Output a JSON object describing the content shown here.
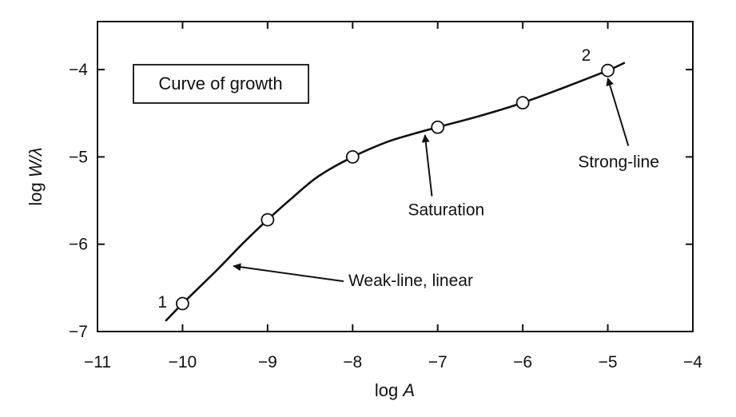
{
  "chart_data": {
    "type": "line",
    "title": "",
    "legend_box": "Curve of growth",
    "xlabel_prefix": "log ",
    "xlabel_var": "A",
    "ylabel_prefix": "log ",
    "ylabel_var": "W/λ",
    "xlim": [
      -11,
      -4
    ],
    "ylim": [
      -7,
      -3.45
    ],
    "xticks": [
      -11,
      -10,
      -9,
      -8,
      -7,
      -6,
      -5,
      -4
    ],
    "yticks": [
      -7,
      -6,
      -5,
      -4
    ],
    "xtick_labels": [
      "−11",
      "−10",
      "−9",
      "−8",
      "−7",
      "−6",
      "−5",
      "−4"
    ],
    "ytick_labels": [
      "−7",
      "−6",
      "−5",
      "−4"
    ],
    "grid": false,
    "curve": {
      "x": [
        -10.2,
        -10.0,
        -9.6,
        -9.3,
        -9.0,
        -8.7,
        -8.4,
        -8.0,
        -7.6,
        -7.3,
        -7.0,
        -6.5,
        -6.0,
        -5.5,
        -5.0,
        -4.8
      ],
      "y": [
        -6.88,
        -6.68,
        -6.3,
        -6.0,
        -5.72,
        -5.46,
        -5.22,
        -5.0,
        -4.83,
        -4.74,
        -4.66,
        -4.53,
        -4.38,
        -4.2,
        -4.01,
        -3.92
      ]
    },
    "points": {
      "x": [
        -10,
        -9,
        -8,
        -7,
        -6,
        -5
      ],
      "y": [
        -6.68,
        -5.72,
        -5.0,
        -4.66,
        -4.38,
        -4.01
      ]
    },
    "point_labels": [
      {
        "text": "1",
        "x": -10,
        "y": -6.68
      },
      {
        "text": "2",
        "x": -5,
        "y": -4.01
      }
    ],
    "annotations": [
      {
        "text": "Weak-line, linear",
        "arrow_to": {
          "x": -9.4,
          "y": -6.25
        },
        "text_at": {
          "x": -8.05,
          "y": -6.48
        }
      },
      {
        "text": "Saturation",
        "arrow_to": {
          "x": -7.15,
          "y": -4.75
        },
        "text_at": {
          "x": -7.35,
          "y": -5.67
        }
      },
      {
        "text": "Strong-line",
        "arrow_to": {
          "x": -5.0,
          "y": -4.1
        },
        "text_at": {
          "x": -5.35,
          "y": -5.12
        }
      }
    ]
  }
}
